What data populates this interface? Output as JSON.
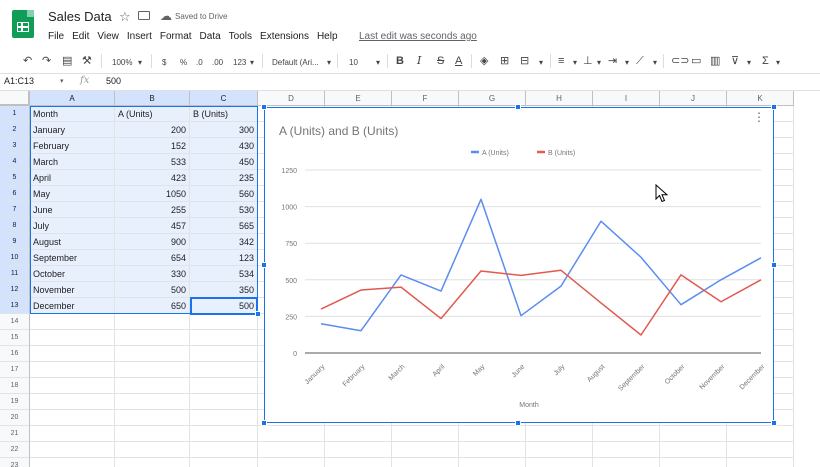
{
  "app": {
    "doc_title": "Sales Data",
    "saved_status": "Saved to Drive",
    "last_edit": "Last edit was seconds ago",
    "menu": [
      "File",
      "Edit",
      "View",
      "Insert",
      "Format",
      "Data",
      "Tools",
      "Extensions",
      "Help"
    ]
  },
  "toolbar": {
    "zoom": "100%",
    "currency": "$",
    "percent": "%",
    "decimal_decrease": ".0",
    "decimal_increase": ".00",
    "more_formats": "123",
    "font": "Default (Ari...",
    "font_size": "10",
    "bold": "B",
    "italic": "I",
    "strike": "S",
    "text_color": "A"
  },
  "formula_bar": {
    "name_box": "A1:C13",
    "fx": "fx",
    "value": "500"
  },
  "columns": [
    "A",
    "B",
    "C",
    "D",
    "E",
    "F",
    "G",
    "H",
    "I",
    "J",
    "K"
  ],
  "rows": [
    "1",
    "2",
    "3",
    "4",
    "5",
    "6",
    "7",
    "8",
    "9",
    "10",
    "11",
    "12",
    "13",
    "14",
    "15",
    "16",
    "17",
    "18",
    "19",
    "20",
    "21",
    "22",
    "23"
  ],
  "sheet": {
    "headers": [
      "Month",
      "A (Units)",
      "B (Units)"
    ],
    "data": [
      [
        "January",
        "200",
        "300"
      ],
      [
        "February",
        "152",
        "430"
      ],
      [
        "March",
        "533",
        "450"
      ],
      [
        "April",
        "423",
        "235"
      ],
      [
        "May",
        "1050",
        "560"
      ],
      [
        "June",
        "255",
        "530"
      ],
      [
        "July",
        "457",
        "565"
      ],
      [
        "August",
        "900",
        "342"
      ],
      [
        "September",
        "654",
        "123"
      ],
      [
        "October",
        "330",
        "534"
      ],
      [
        "November",
        "500",
        "350"
      ],
      [
        "December",
        "650",
        "500"
      ]
    ]
  },
  "colors": {
    "series_a": "#5b8def",
    "series_b": "#e05a4f",
    "selection": "#1a73e8",
    "sheets_green": "#0f9d58"
  },
  "chart_data": {
    "type": "line",
    "title": "A (Units) and B (Units)",
    "xlabel": "Month",
    "ylabel": "",
    "categories": [
      "January",
      "February",
      "March",
      "April",
      "May",
      "June",
      "July",
      "August",
      "September",
      "October",
      "November",
      "December"
    ],
    "series": [
      {
        "name": "A (Units)",
        "values": [
          200,
          152,
          533,
          423,
          1050,
          255,
          457,
          900,
          654,
          330,
          500,
          650
        ]
      },
      {
        "name": "B (Units)",
        "values": [
          300,
          430,
          450,
          235,
          560,
          530,
          565,
          342,
          123,
          534,
          350,
          500
        ]
      }
    ],
    "yticks": [
      "0",
      "250",
      "500",
      "750",
      "1000",
      "1250"
    ],
    "ylim": [
      0,
      1250
    ],
    "grid": true,
    "legend": "top"
  }
}
